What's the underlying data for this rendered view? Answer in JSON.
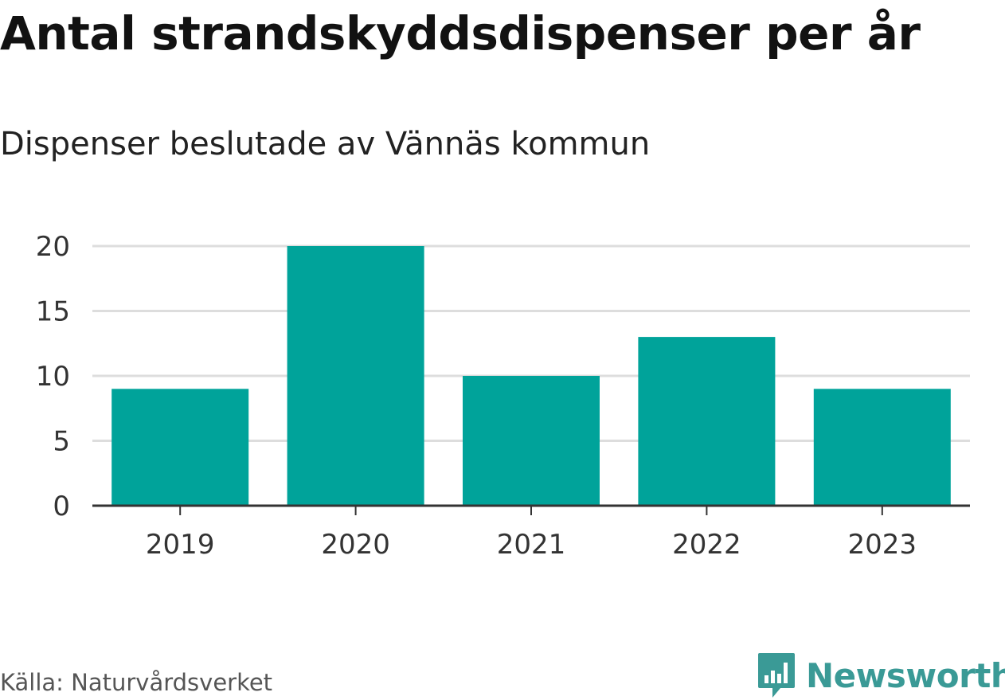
{
  "header": {
    "title": "Antal strandskyddsdispenser per år",
    "subtitle": "Dispenser beslutade av Vännäs kommun"
  },
  "footer": {
    "source": "Källa: Naturvårdsverket",
    "brand": "Newsworthy",
    "brand_icon": "bar-chart-speech-bubble-icon"
  },
  "colors": {
    "bar": "#00a39a",
    "grid": "#dddddd",
    "axis": "#333333",
    "brand": "#3a9a96"
  },
  "chart_data": {
    "type": "bar",
    "title": "Antal strandskyddsdispenser per år",
    "subtitle": "Dispenser beslutade av Vännäs kommun",
    "categories": [
      "2019",
      "2020",
      "2021",
      "2022",
      "2023"
    ],
    "values": [
      9,
      20,
      10,
      13,
      9
    ],
    "ylim": [
      0,
      20
    ],
    "yticks": [
      0,
      5,
      10,
      15,
      20
    ],
    "grid": true,
    "legend": "none"
  }
}
